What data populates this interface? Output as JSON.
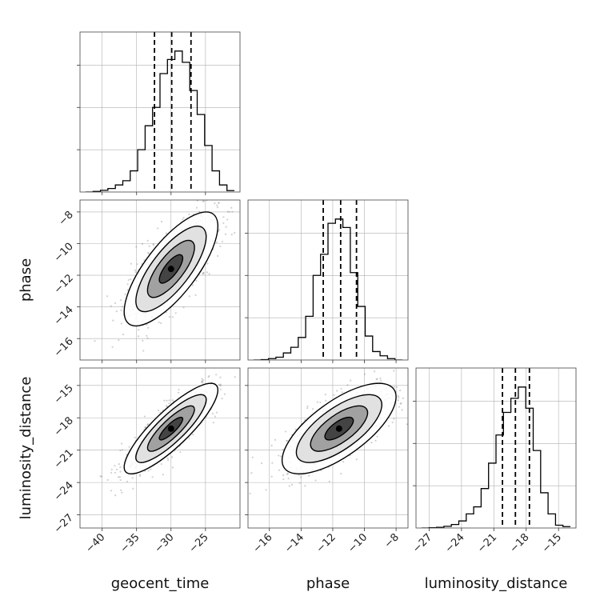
{
  "chart_data": {
    "type": "corner",
    "parameters": [
      "geocent_time",
      "phase",
      "luminosity_distance"
    ],
    "axis_labels": {
      "geocent_time": "geocent_time",
      "phase": "phase",
      "luminosity_distance": "luminosity_distance"
    },
    "ranges": {
      "geocent_time": [
        -42.4,
        -20.8
      ],
      "phase": [
        -17.0,
        -7.6
      ],
      "luminosity_distance": [
        -27.7,
        -13.9
      ]
    },
    "ticks": {
      "geocent_time": [
        -40,
        -35,
        -30,
        -25
      ],
      "phase": [
        -16,
        -14,
        -12,
        -10,
        -8
      ],
      "luminosity_distance": [
        -27,
        -24,
        -21,
        -18,
        -15
      ]
    },
    "tick_labels": {
      "geocent_time": [
        "−40",
        "−35",
        "−30",
        "−25"
      ],
      "phase": [
        "−16",
        "−14",
        "−12",
        "−10",
        "−8"
      ],
      "luminosity_distance": [
        "−27",
        "−24",
        "−21",
        "−18",
        "−15"
      ]
    },
    "quantiles": {
      "geocent_time": [
        -32.4,
        -29.9,
        -27.1
      ],
      "phase": [
        -12.6,
        -11.5,
        -10.5
      ],
      "luminosity_distance": [
        -20.2,
        -19.0,
        -17.7
      ]
    },
    "histograms": {
      "geocent_time": {
        "bin_edges": [
          -42.4,
          -41.32,
          -40.24,
          -39.16,
          -38.08,
          -37.0,
          -35.92,
          -34.84,
          -33.76,
          -32.68,
          -31.6,
          -30.52,
          -29.44,
          -28.36,
          -27.28,
          -26.2,
          -25.12,
          -24.04,
          -22.96,
          -21.88,
          -20.8
        ],
        "counts": [
          0,
          0.004,
          0.012,
          0.025,
          0.05,
          0.08,
          0.15,
          0.3,
          0.47,
          0.6,
          0.84,
          0.94,
          1.0,
          0.92,
          0.72,
          0.55,
          0.33,
          0.15,
          0.05,
          0.01
        ]
      },
      "phase": {
        "bin_edges": [
          -17.0,
          -16.53,
          -16.06,
          -15.59,
          -15.12,
          -14.65,
          -14.18,
          -13.71,
          -13.24,
          -12.77,
          -12.3,
          -11.83,
          -11.36,
          -10.89,
          -10.42,
          -9.95,
          -9.48,
          -9.01,
          -8.54,
          -8.07,
          -7.6
        ],
        "counts": [
          0,
          0.003,
          0.01,
          0.02,
          0.05,
          0.09,
          0.16,
          0.31,
          0.6,
          0.75,
          0.97,
          1.0,
          0.94,
          0.62,
          0.38,
          0.17,
          0.06,
          0.03,
          0.01,
          0
        ]
      },
      "luminosity_distance": {
        "bin_edges": [
          -27.7,
          -27.01,
          -26.32,
          -25.63,
          -24.94,
          -24.25,
          -23.56,
          -22.87,
          -22.18,
          -21.49,
          -20.8,
          -20.11,
          -19.42,
          -18.73,
          -18.04,
          -17.35,
          -16.66,
          -15.97,
          -15.28,
          -14.59,
          -13.9
        ],
        "counts": [
          0,
          0.002,
          0.005,
          0.012,
          0.025,
          0.05,
          0.1,
          0.15,
          0.28,
          0.46,
          0.66,
          0.82,
          0.92,
          1.0,
          0.85,
          0.55,
          0.25,
          0.1,
          0.02,
          0.01
        ]
      }
    },
    "joint": {
      "phase_vs_geocent_time": {
        "mean": [
          -30.0,
          -11.6
        ],
        "sd": [
          3.4,
          1.8
        ],
        "corr": 0.75
      },
      "luminosity_distance_vs_geocent_time": {
        "mean": [
          -30.0,
          -19.0
        ],
        "sd": [
          3.4,
          2.1
        ],
        "corr": 0.85
      },
      "luminosity_distance_vs_phase": {
        "mean": [
          -11.6,
          -19.0
        ],
        "sd": [
          1.8,
          2.1
        ],
        "corr": 0.7
      }
    },
    "contour_levels_sigma": [
      0.5,
      1.0,
      1.5,
      2.0
    ],
    "grid": true,
    "colors": {
      "hist": "#000000",
      "quantile": "#000000",
      "density": "#000000",
      "scatter": "#777777",
      "grid": "#b0b0b0"
    }
  }
}
